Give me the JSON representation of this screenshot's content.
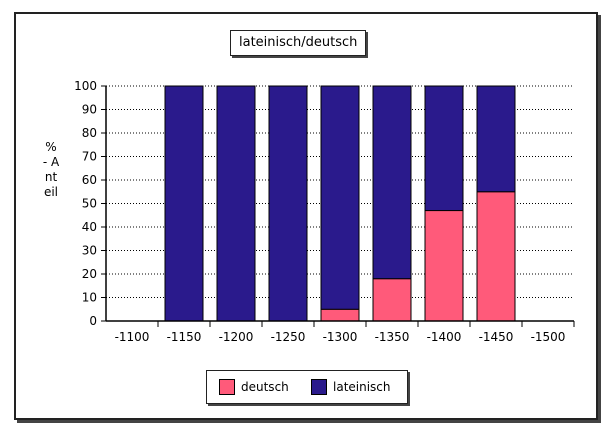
{
  "chart_data": {
    "type": "bar",
    "stacked": true,
    "title": "lateinisch/deutsch",
    "xlabel": "",
    "ylabel": "% - Anteil",
    "ylim": [
      0,
      100
    ],
    "yticks": [
      0,
      10,
      20,
      30,
      40,
      50,
      60,
      70,
      80,
      90,
      100
    ],
    "categories": [
      "-1100",
      "-1150",
      "-1200",
      "-1250",
      "-1300",
      "-1350",
      "-1400",
      "-1450",
      "-1500"
    ],
    "series": [
      {
        "name": "deutsch",
        "color": "#ff5a7a",
        "values": [
          0,
          0,
          0,
          0,
          5,
          18,
          47,
          55,
          0
        ]
      },
      {
        "name": "lateinisch",
        "color": "#2a1a8c",
        "values": [
          0,
          100,
          100,
          100,
          95,
          82,
          53,
          45,
          0
        ]
      }
    ],
    "grid": true,
    "legend_position": "bottom"
  }
}
